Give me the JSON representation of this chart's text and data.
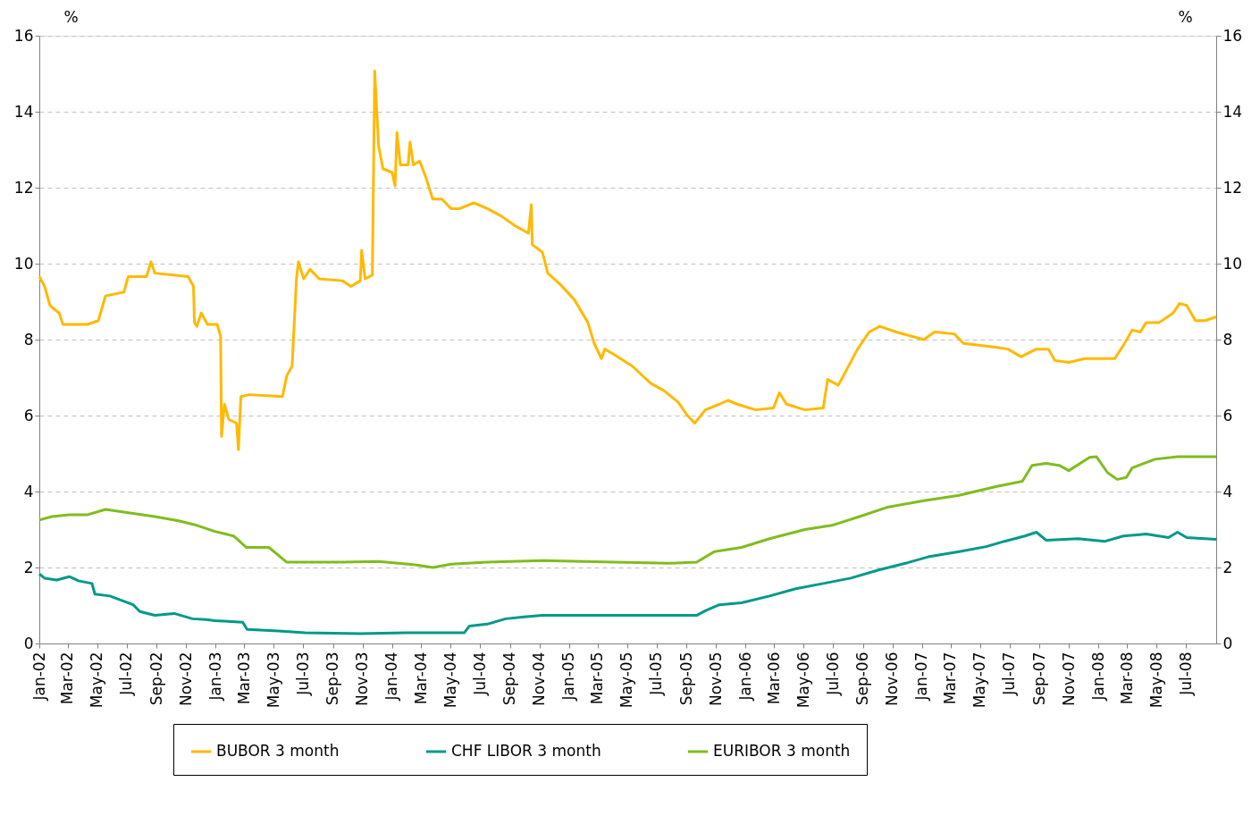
{
  "chart_data": {
    "type": "line",
    "ylabel": "%",
    "y2label": "%",
    "xlim": [
      "2002-01-01",
      "2008-09-01"
    ],
    "xticks": [
      {
        "value": "2002-01-01",
        "label": "Jan-02"
      },
      {
        "value": "2002-03-01",
        "label": "Mar-02"
      },
      {
        "value": "2002-05-01",
        "label": "May-02"
      },
      {
        "value": "2002-07-01",
        "label": "Jul-02"
      },
      {
        "value": "2002-09-01",
        "label": "Sep-02"
      },
      {
        "value": "2002-11-01",
        "label": "Nov-02"
      },
      {
        "value": "2003-01-01",
        "label": "Jan-03"
      },
      {
        "value": "2003-03-01",
        "label": "Mar-03"
      },
      {
        "value": "2003-05-01",
        "label": "May-03"
      },
      {
        "value": "2003-07-01",
        "label": "Jul-03"
      },
      {
        "value": "2003-09-01",
        "label": "Sep-03"
      },
      {
        "value": "2003-11-01",
        "label": "Nov-03"
      },
      {
        "value": "2004-01-01",
        "label": "Jan-04"
      },
      {
        "value": "2004-03-01",
        "label": "Mar-04"
      },
      {
        "value": "2004-05-01",
        "label": "May-04"
      },
      {
        "value": "2004-07-01",
        "label": "Jul-04"
      },
      {
        "value": "2004-09-01",
        "label": "Sep-04"
      },
      {
        "value": "2004-11-01",
        "label": "Nov-04"
      },
      {
        "value": "2005-01-01",
        "label": "Jan-05"
      },
      {
        "value": "2005-03-01",
        "label": "Mar-05"
      },
      {
        "value": "2005-05-01",
        "label": "May-05"
      },
      {
        "value": "2005-07-01",
        "label": "Jul-05"
      },
      {
        "value": "2005-09-01",
        "label": "Sep-05"
      },
      {
        "value": "2005-11-01",
        "label": "Nov-05"
      },
      {
        "value": "2006-01-01",
        "label": "Jan-06"
      },
      {
        "value": "2006-03-01",
        "label": "Mar-06"
      },
      {
        "value": "2006-05-01",
        "label": "May-06"
      },
      {
        "value": "2006-07-01",
        "label": "Jul-06"
      },
      {
        "value": "2006-09-01",
        "label": "Sep-06"
      },
      {
        "value": "2006-11-01",
        "label": "Nov-06"
      },
      {
        "value": "2007-01-01",
        "label": "Jan-07"
      },
      {
        "value": "2007-03-01",
        "label": "Mar-07"
      },
      {
        "value": "2007-05-01",
        "label": "May-07"
      },
      {
        "value": "2007-07-01",
        "label": "Jul-07"
      },
      {
        "value": "2007-09-01",
        "label": "Sep-07"
      },
      {
        "value": "2007-11-01",
        "label": "Nov-07"
      },
      {
        "value": "2008-01-01",
        "label": "Jan-08"
      },
      {
        "value": "2008-03-01",
        "label": "Mar-08"
      },
      {
        "value": "2008-05-01",
        "label": "May-08"
      },
      {
        "value": "2008-07-01",
        "label": "Jul-08"
      }
    ],
    "ylim": [
      0,
      16
    ],
    "yticks": [
      0,
      2,
      4,
      6,
      8,
      10,
      12,
      14,
      16
    ],
    "y2lim": [
      0,
      16
    ],
    "y2ticks": [
      0,
      2,
      4,
      6,
      8,
      10,
      12,
      14,
      16
    ],
    "grid": "y",
    "legend": "bottom",
    "marker": "none",
    "line_style": "solid",
    "series": [
      {
        "name": "BUBOR 3 month",
        "color": "#ffb900",
        "x": [
          "2002-01-01",
          "2002-01-12",
          "2002-01-23",
          "2002-02-11",
          "2002-02-19",
          "2002-04-11",
          "2002-05-03",
          "2002-05-18",
          "2002-06-25",
          "2002-07-04",
          "2002-08-11",
          "2002-08-20",
          "2002-08-28",
          "2002-11-05",
          "2002-11-16",
          "2002-11-18",
          "2002-11-23",
          "2002-12-02",
          "2002-12-15",
          "2003-01-04",
          "2003-01-11",
          "2003-01-13",
          "2003-01-19",
          "2003-01-28",
          "2003-02-13",
          "2003-02-17",
          "2003-02-22",
          "2003-03-11",
          "2003-05-19",
          "2003-05-28",
          "2003-06-08",
          "2003-06-17",
          "2003-06-21",
          "2003-07-02",
          "2003-07-15",
          "2003-08-03",
          "2003-09-20",
          "2003-10-08",
          "2003-10-27",
          "2003-10-30",
          "2003-11-06",
          "2003-11-21",
          "2003-11-26",
          "2003-12-04",
          "2003-12-13",
          "2004-01-01",
          "2004-01-07",
          "2004-01-11",
          "2004-01-18",
          "2004-02-03",
          "2004-02-07",
          "2004-02-14",
          "2004-02-27",
          "2004-03-10",
          "2004-03-25",
          "2004-04-13",
          "2004-05-02",
          "2004-05-20",
          "2004-06-18",
          "2004-07-16",
          "2004-08-14",
          "2004-09-11",
          "2004-10-09",
          "2004-10-15",
          "2004-10-17",
          "2004-11-07",
          "2004-11-18",
          "2004-12-14",
          "2005-01-12",
          "2005-02-09",
          "2005-02-22",
          "2005-03-09",
          "2005-03-16",
          "2005-04-05",
          "2005-05-12",
          "2005-06-19",
          "2005-07-17",
          "2005-08-15",
          "2005-09-03",
          "2005-09-18",
          "2005-10-10",
          "2005-11-08",
          "2005-11-26",
          "2005-12-15",
          "2006-01-22",
          "2006-02-28",
          "2006-03-12",
          "2006-03-27",
          "2006-05-04",
          "2006-06-11",
          "2006-06-20",
          "2006-07-12",
          "2006-07-27",
          "2006-08-21",
          "2006-09-14",
          "2006-10-06",
          "2006-11-09",
          "2007-01-05",
          "2007-01-27",
          "2007-03-09",
          "2007-03-28",
          "2007-06-03",
          "2007-06-28",
          "2007-07-25",
          "2007-08-26",
          "2007-09-20",
          "2007-10-03",
          "2007-11-01",
          "2007-12-04",
          "2008-02-04",
          "2008-02-22",
          "2008-03-11",
          "2008-03-28",
          "2008-04-09",
          "2008-05-06",
          "2008-06-04",
          "2008-06-17",
          "2008-07-02",
          "2008-07-20",
          "2008-08-09",
          "2008-09-01"
        ],
        "values": [
          9.66,
          9.4,
          8.9,
          8.7,
          8.4,
          8.4,
          8.5,
          9.15,
          9.25,
          9.66,
          9.66,
          10.05,
          9.75,
          9.66,
          9.4,
          8.45,
          8.35,
          8.7,
          8.4,
          8.4,
          8.1,
          5.45,
          6.3,
          5.9,
          5.8,
          5.1,
          6.5,
          6.55,
          6.5,
          7.05,
          7.3,
          9.6,
          10.05,
          9.6,
          9.85,
          9.6,
          9.55,
          9.4,
          9.55,
          10.35,
          9.6,
          9.7,
          15.07,
          13.1,
          12.5,
          12.4,
          12.05,
          13.45,
          12.6,
          12.6,
          13.2,
          12.6,
          12.7,
          12.3,
          11.7,
          11.7,
          11.45,
          11.45,
          11.6,
          11.45,
          11.25,
          11.0,
          10.8,
          11.55,
          10.5,
          10.3,
          9.75,
          9.45,
          9.05,
          8.45,
          7.9,
          7.5,
          7.75,
          7.6,
          7.3,
          6.85,
          6.65,
          6.35,
          6.0,
          5.8,
          6.15,
          6.3,
          6.4,
          6.3,
          6.15,
          6.2,
          6.6,
          6.3,
          6.15,
          6.2,
          6.95,
          6.8,
          7.15,
          7.75,
          8.2,
          8.35,
          8.2,
          8.0,
          8.2,
          8.15,
          7.9,
          7.8,
          7.75,
          7.55,
          7.75,
          7.75,
          7.45,
          7.4,
          7.5,
          7.5,
          7.85,
          8.25,
          8.2,
          8.45,
          8.45,
          8.7,
          8.95,
          8.9,
          8.5,
          8.5,
          8.6
        ]
      },
      {
        "name": "CHF LIBOR 3 month",
        "color": "#00998a",
        "x": [
          "2002-01-01",
          "2002-01-12",
          "2002-02-06",
          "2002-03-04",
          "2002-03-23",
          "2002-04-20",
          "2002-04-26",
          "2002-05-27",
          "2002-07-14",
          "2002-07-28",
          "2002-08-28",
          "2002-10-07",
          "2002-11-14",
          "2002-12-12",
          "2002-12-30",
          "2003-02-26",
          "2003-03-07",
          "2003-05-10",
          "2003-07-05",
          "2003-10-27",
          "2004-01-29",
          "2004-04-13",
          "2004-05-29",
          "2004-06-09",
          "2004-07-16",
          "2004-08-23",
          "2004-09-30",
          "2004-11-07",
          "2005-01-02",
          "2005-04-05",
          "2005-09-22",
          "2005-10-10",
          "2005-11-08",
          "2005-12-24",
          "2006-02-20",
          "2006-04-15",
          "2006-06-11",
          "2006-08-07",
          "2006-10-02",
          "2006-11-28",
          "2007-01-14",
          "2007-03-19",
          "2007-05-14",
          "2007-06-21",
          "2007-08-02",
          "2007-08-26",
          "2007-09-15",
          "2007-11-20",
          "2008-01-15",
          "2008-02-22",
          "2008-04-09",
          "2008-05-25",
          "2008-06-13",
          "2008-07-02",
          "2008-09-01"
        ],
        "values": [
          1.83,
          1.72,
          1.67,
          1.76,
          1.65,
          1.58,
          1.3,
          1.25,
          1.02,
          0.84,
          0.74,
          0.79,
          0.65,
          0.63,
          0.6,
          0.56,
          0.37,
          0.33,
          0.28,
          0.26,
          0.28,
          0.28,
          0.28,
          0.46,
          0.51,
          0.65,
          0.7,
          0.74,
          0.74,
          0.74,
          0.74,
          0.86,
          1.02,
          1.07,
          1.25,
          1.44,
          1.58,
          1.72,
          1.93,
          2.11,
          2.28,
          2.42,
          2.55,
          2.69,
          2.83,
          2.93,
          2.72,
          2.76,
          2.69,
          2.83,
          2.88,
          2.79,
          2.93,
          2.79,
          2.74
        ]
      },
      {
        "name": "EURIBOR 3 month",
        "color": "#80bc1e",
        "x": [
          "2002-01-01",
          "2002-01-27",
          "2002-03-04",
          "2002-04-11",
          "2002-05-18",
          "2002-06-25",
          "2002-08-28",
          "2002-10-16",
          "2002-11-23",
          "2002-12-30",
          "2003-02-07",
          "2003-03-05",
          "2003-04-21",
          "2003-05-28",
          "2003-09-20",
          "2003-12-04",
          "2004-02-18",
          "2004-03-25",
          "2004-05-02",
          "2004-07-16",
          "2004-11-07",
          "2005-04-05",
          "2005-07-26",
          "2005-09-22",
          "2005-10-29",
          "2005-12-24",
          "2006-02-20",
          "2006-05-04",
          "2006-06-29",
          "2006-08-25",
          "2006-10-20",
          "2007-01-05",
          "2007-03-19",
          "2007-06-03",
          "2007-07-28",
          "2007-08-17",
          "2007-09-15",
          "2007-10-12",
          "2007-11-01",
          "2007-12-14",
          "2007-12-28",
          "2008-01-20",
          "2008-02-09",
          "2008-02-28",
          "2008-03-11",
          "2008-04-27",
          "2008-06-13",
          "2008-09-01"
        ],
        "values": [
          3.25,
          3.34,
          3.39,
          3.39,
          3.53,
          3.46,
          3.34,
          3.23,
          3.11,
          2.95,
          2.83,
          2.53,
          2.53,
          2.14,
          2.14,
          2.16,
          2.07,
          2.0,
          2.09,
          2.14,
          2.18,
          2.14,
          2.11,
          2.14,
          2.42,
          2.53,
          2.76,
          3.0,
          3.11,
          3.34,
          3.58,
          3.76,
          3.9,
          4.13,
          4.27,
          4.69,
          4.74,
          4.69,
          4.55,
          4.9,
          4.92,
          4.5,
          4.32,
          4.37,
          4.62,
          4.85,
          4.92,
          4.92
        ]
      }
    ]
  }
}
